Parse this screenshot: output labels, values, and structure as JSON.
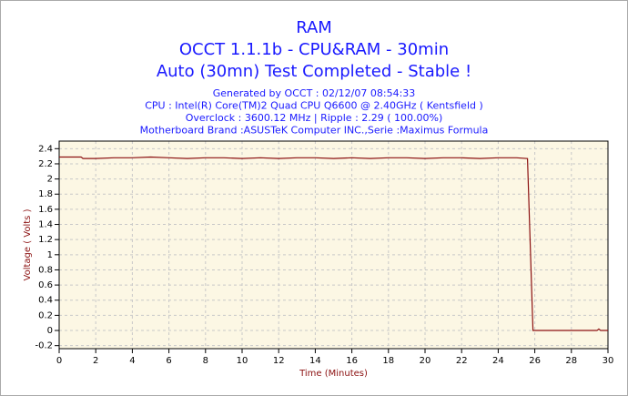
{
  "chart_data": {
    "type": "line",
    "title": [
      "RAM",
      "OCCT 1.1.1b - CPU&RAM - 30min",
      "Auto (30mn) Test Completed - Stable !"
    ],
    "subtitles": [
      "Generated by OCCT : 02/12/07 08:54:33",
      "CPU : Intel(R) Core(TM)2 Quad CPU Q6600 @ 2.40GHz ( Kentsfield )",
      "Overclock : 3600.12 MHz | Ripple : 2.29 ( 100.00%)",
      "Motherboard Brand :ASUSTeK Computer INC.,Serie :Maximus Formula"
    ],
    "x_label": "Time (Minutes)",
    "y_label": "Voltage ( Volts )",
    "x": [
      0,
      1.2,
      1.3,
      2,
      3,
      4,
      5,
      6,
      7,
      8,
      9,
      10,
      11,
      12,
      13,
      14,
      15,
      16,
      17,
      18,
      19,
      20,
      21,
      22,
      23,
      24,
      25,
      25.6,
      25.9,
      26,
      27,
      28,
      29,
      29.4,
      29.5,
      29.6,
      30
    ],
    "series": [
      {
        "color": "#8b1010",
        "values": [
          2.29,
          2.29,
          2.27,
          2.27,
          2.28,
          2.28,
          2.29,
          2.28,
          2.27,
          2.28,
          2.28,
          2.27,
          2.28,
          2.27,
          2.28,
          2.28,
          2.27,
          2.28,
          2.27,
          2.28,
          2.28,
          2.27,
          2.28,
          2.28,
          2.27,
          2.28,
          2.28,
          2.27,
          0,
          0,
          0,
          0,
          0,
          0,
          0.02,
          0,
          0
        ]
      }
    ],
    "xlim": [
      0,
      30
    ],
    "xticks": [
      0,
      2,
      4,
      6,
      8,
      10,
      12,
      14,
      16,
      18,
      20,
      22,
      24,
      26,
      28,
      30
    ],
    "ylim": [
      -0.24,
      2.5
    ],
    "yticks": [
      -0.2,
      0,
      0.2,
      0.4,
      0.6,
      0.8,
      1,
      1.2,
      1.4,
      1.6,
      1.8,
      2,
      2.2,
      2.4
    ],
    "grid": true
  }
}
